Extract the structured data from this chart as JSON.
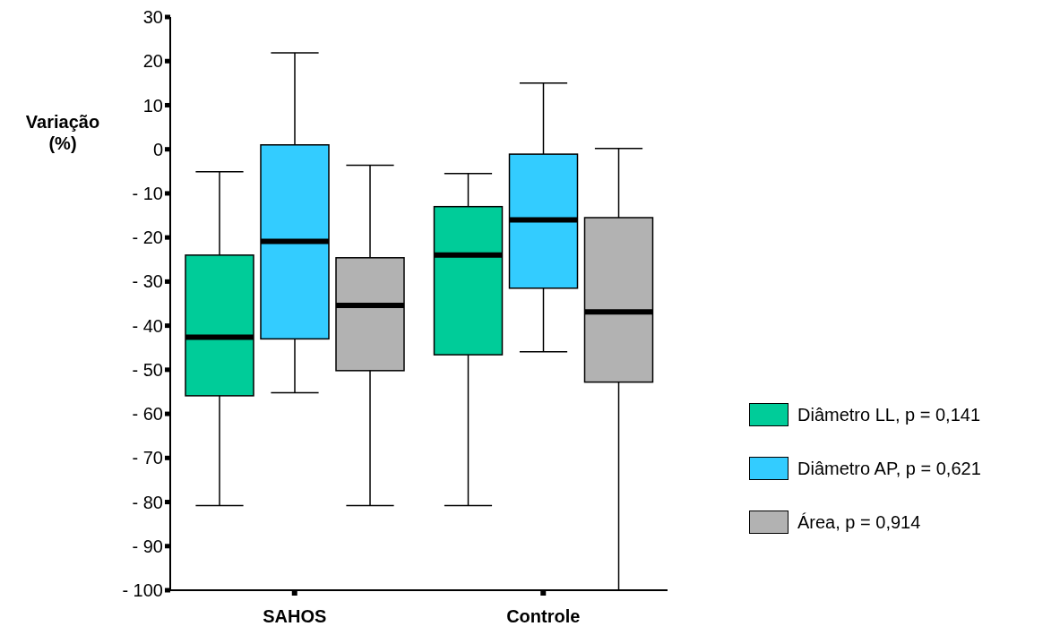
{
  "chart_data": {
    "type": "box",
    "categories": [
      "SAHOS",
      "Controle"
    ],
    "ylabel": "Variação (%)",
    "ylim": [
      -100,
      30
    ],
    "yticks": [
      30,
      20,
      10,
      0,
      {
        "value": -10,
        "label": "- 10"
      },
      {
        "value": -20,
        "label": "- 20"
      },
      {
        "value": -30,
        "label": "- 30"
      },
      {
        "value": -40,
        "label": "- 40"
      },
      {
        "value": -50,
        "label": "- 50"
      },
      {
        "value": -60,
        "label": "- 60"
      },
      {
        "value": -70,
        "label": "- 70"
      },
      {
        "value": -80,
        "label": "- 80"
      },
      {
        "value": -90,
        "label": "- 90"
      },
      {
        "value": -100,
        "label": "- 100"
      }
    ],
    "legend": "right",
    "series": [
      {
        "name": "Diâmetro LL, p = 0,141",
        "color": "#00cc99",
        "boxes": [
          {
            "low": -80.8,
            "q1": -55.9,
            "median": -42.6,
            "q3": -24.0,
            "high": -5.1
          },
          {
            "low": -80.8,
            "q1": -46.6,
            "median": -24.0,
            "q3": -13.0,
            "high": -5.5
          }
        ]
      },
      {
        "name": "Diâmetro AP, p = 0,621",
        "color": "#33ccff",
        "boxes": [
          {
            "low": -55.2,
            "q1": -43.0,
            "median": -20.9,
            "q3": 1.0,
            "high": 21.9
          },
          {
            "low": -45.9,
            "q1": -31.5,
            "median": -16.0,
            "q3": -1.1,
            "high": 15.0
          }
        ]
      },
      {
        "name": "Área, p = 0,914",
        "color": "#b2b2b2",
        "boxes": [
          {
            "low": -80.8,
            "q1": -50.2,
            "median": -35.4,
            "q3": -24.6,
            "high": -3.6
          },
          {
            "low": -100,
            "q1": -52.8,
            "median": -36.9,
            "q3": -15.5,
            "high": 0.2
          }
        ]
      }
    ]
  }
}
